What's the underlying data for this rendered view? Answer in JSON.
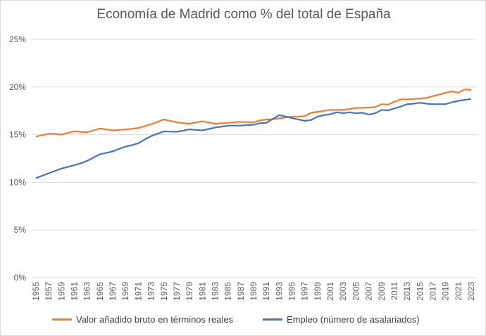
{
  "chart_data": {
    "type": "line",
    "title": "Economía de Madrid como % del total de España",
    "xlabel": "",
    "ylabel": "",
    "ylim": [
      0,
      25
    ],
    "yticks": [
      "0%",
      "5%",
      "10%",
      "15%",
      "20%",
      "25%"
    ],
    "ytick_values": [
      0,
      5,
      10,
      15,
      20,
      25
    ],
    "grid": "horizontal",
    "legend": "bottom",
    "x": [
      1955,
      1956,
      1957,
      1958,
      1959,
      1960,
      1961,
      1962,
      1963,
      1964,
      1965,
      1966,
      1967,
      1968,
      1969,
      1970,
      1971,
      1972,
      1973,
      1974,
      1975,
      1976,
      1977,
      1978,
      1979,
      1980,
      1981,
      1982,
      1983,
      1984,
      1985,
      1986,
      1987,
      1988,
      1989,
      1990,
      1991,
      1992,
      1993,
      1994,
      1995,
      1996,
      1997,
      1998,
      1999,
      2000,
      2001,
      2002,
      2003,
      2004,
      2005,
      2006,
      2007,
      2008,
      2009,
      2010,
      2011,
      2012,
      2013,
      2014,
      2015,
      2016,
      2017,
      2018,
      2019,
      2020,
      2021,
      2022,
      2023
    ],
    "xtick_labels": [
      "1955",
      "1957",
      "1959",
      "1961",
      "1963",
      "1965",
      "1967",
      "1969",
      "1971",
      "1973",
      "1975",
      "1977",
      "1979",
      "1981",
      "1983",
      "1985",
      "1987",
      "1989",
      "1991",
      "1993",
      "1995",
      "1997",
      "1999",
      "2001",
      "2003",
      "2005",
      "2007",
      "2009",
      "2011",
      "2013",
      "2015",
      "2017",
      "2019",
      "2021",
      "2023"
    ],
    "series": [
      {
        "name": "Valor añadido bruto en términos reales",
        "color": "#ed7d31",
        "values": [
          14.8,
          14.95,
          15.1,
          15.08,
          15.0,
          15.2,
          15.35,
          15.3,
          15.25,
          15.45,
          15.65,
          15.55,
          15.45,
          15.5,
          15.55,
          15.62,
          15.7,
          15.9,
          16.1,
          16.35,
          16.6,
          16.45,
          16.3,
          16.22,
          16.15,
          16.28,
          16.4,
          16.28,
          16.15,
          16.2,
          16.25,
          16.3,
          16.35,
          16.32,
          16.3,
          16.5,
          16.6,
          16.62,
          16.7,
          16.8,
          16.9,
          16.9,
          16.95,
          17.3,
          17.4,
          17.5,
          17.6,
          17.6,
          17.6,
          17.7,
          17.8,
          17.82,
          17.85,
          17.9,
          18.2,
          18.15,
          18.45,
          18.7,
          18.7,
          18.75,
          18.8,
          18.85,
          19.05,
          19.2,
          19.4,
          19.55,
          19.4,
          19.75,
          19.7
        ]
      },
      {
        "name": "Empleo (número de asalariados)",
        "color": "#4472c4",
        "values": [
          10.45,
          10.7,
          10.95,
          11.2,
          11.45,
          11.62,
          11.8,
          12.0,
          12.25,
          12.6,
          12.95,
          13.1,
          13.25,
          13.5,
          13.75,
          13.9,
          14.1,
          14.5,
          14.85,
          15.1,
          15.35,
          15.32,
          15.3,
          15.42,
          15.55,
          15.5,
          15.45,
          15.6,
          15.75,
          15.85,
          15.95,
          15.95,
          15.95,
          16.0,
          16.05,
          16.2,
          16.25,
          16.65,
          17.05,
          16.9,
          16.75,
          16.6,
          16.45,
          16.55,
          16.9,
          17.05,
          17.15,
          17.35,
          17.25,
          17.35,
          17.25,
          17.3,
          17.1,
          17.25,
          17.6,
          17.55,
          17.75,
          17.95,
          18.2,
          18.25,
          18.35,
          18.25,
          18.2,
          18.2,
          18.2,
          18.4,
          18.55,
          18.65,
          18.75
        ]
      }
    ]
  }
}
